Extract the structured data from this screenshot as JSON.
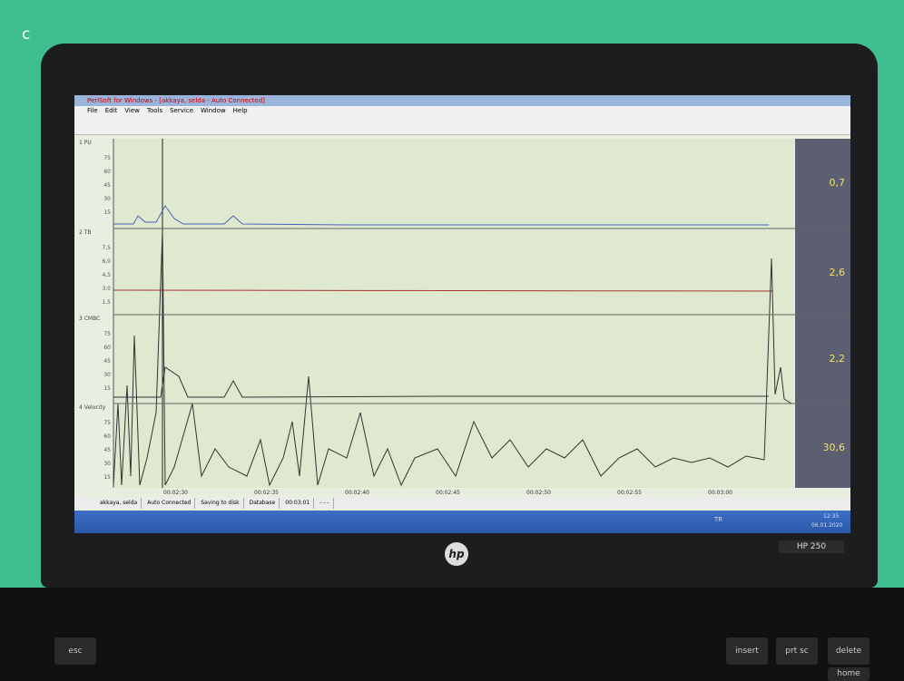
{
  "figure_label": "c",
  "window": {
    "title": "PeriSoft for Windows - [akkaya, selda - Auto Connected]",
    "menu": [
      "File",
      "Edit",
      "View",
      "Tools",
      "Service",
      "Window",
      "Help"
    ]
  },
  "channels": [
    {
      "label": "1 PU",
      "ticks": [
        "75",
        "60",
        "45",
        "30",
        "15"
      ],
      "value": "0,7"
    },
    {
      "label": "2 TB",
      "ticks": [
        "7,5",
        "6,0",
        "4,5",
        "3,0",
        "1,5"
      ],
      "value": "2,6"
    },
    {
      "label": "3 CMBC",
      "ticks": [
        "75",
        "60",
        "45",
        "30",
        "15"
      ],
      "value": "2,2"
    },
    {
      "label": "4 Velocity",
      "ticks": [
        "75",
        "60",
        "45",
        "30",
        "15"
      ],
      "value": "30,6"
    }
  ],
  "time_labels": [
    "00:02:30",
    "00:02:35",
    "00:02:40",
    "00:02:45",
    "00:02:50",
    "00:02:55",
    "00:03:00"
  ],
  "status": [
    "akkaya, selda",
    "Auto Connected",
    "Saving to disk",
    "Database",
    "00:03:01",
    "- - -"
  ],
  "taskbar": {
    "language": "TR",
    "time": "12:35",
    "date": "06.01.2020"
  },
  "model": "HP 250",
  "keys": [
    "esc",
    "insert",
    "prt sc",
    "delete",
    "home"
  ]
}
